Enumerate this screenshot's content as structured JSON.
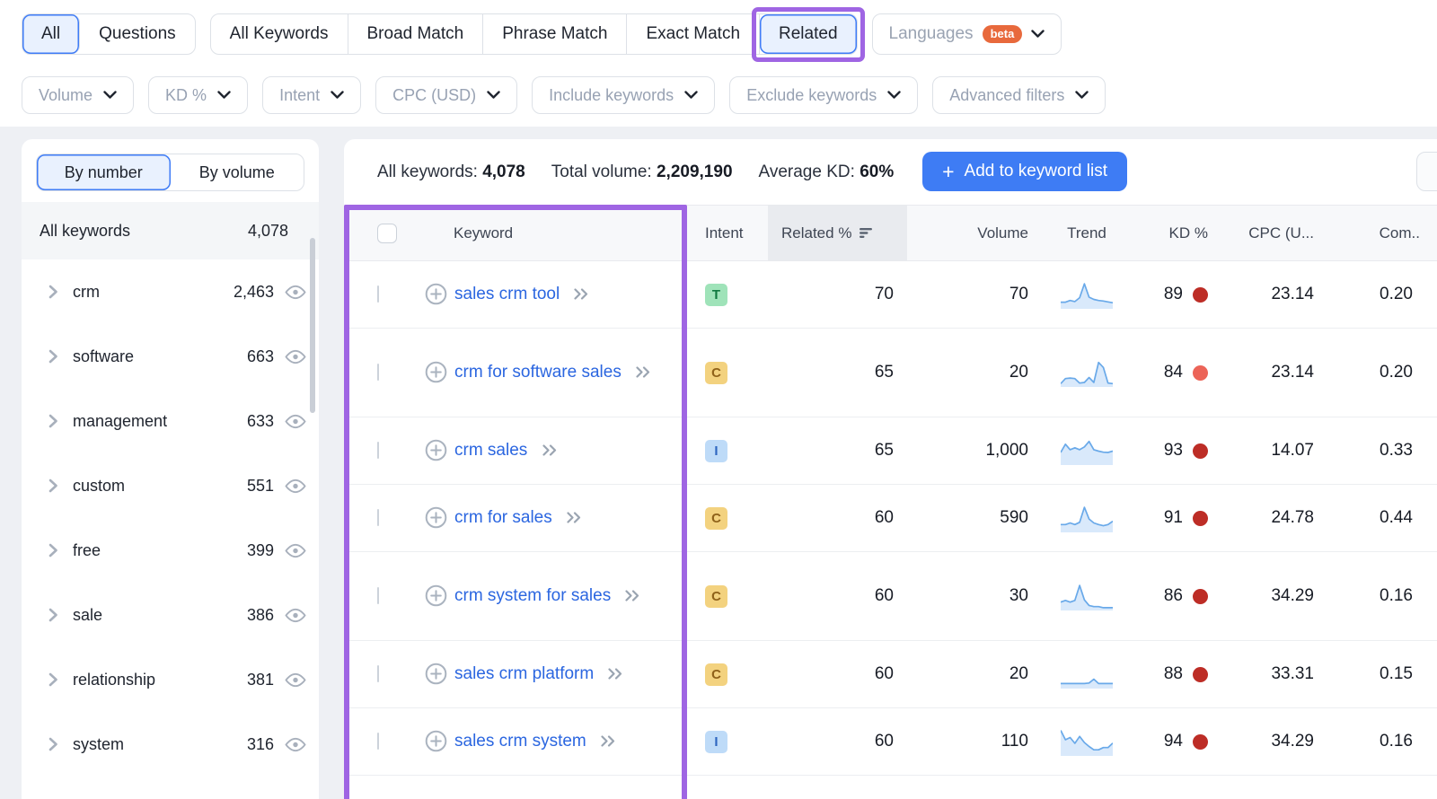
{
  "match_tabs": {
    "group1": [
      {
        "label": "All",
        "selected": true,
        "annotated": false
      },
      {
        "label": "Questions",
        "selected": false,
        "annotated": false
      }
    ],
    "group2": [
      {
        "label": "All Keywords",
        "selected": false,
        "annotated": false
      },
      {
        "label": "Broad Match",
        "selected": false,
        "annotated": false
      },
      {
        "label": "Phrase Match",
        "selected": false,
        "annotated": false
      },
      {
        "label": "Exact Match",
        "selected": false,
        "annotated": false
      },
      {
        "label": "Related",
        "selected": true,
        "annotated": true
      }
    ],
    "languages": {
      "label": "Languages",
      "badge": "beta"
    }
  },
  "filters": [
    {
      "label": "Volume"
    },
    {
      "label": "KD %"
    },
    {
      "label": "Intent"
    },
    {
      "label": "CPC (USD)"
    },
    {
      "label": "Include keywords"
    },
    {
      "label": "Exclude keywords"
    },
    {
      "label": "Advanced filters"
    }
  ],
  "sidebar": {
    "view_toggle": [
      {
        "label": "By number",
        "selected": true
      },
      {
        "label": "By volume",
        "selected": false
      }
    ],
    "all_keywords": {
      "label": "All keywords",
      "count": "4,078"
    },
    "groups": [
      {
        "label": "crm",
        "count": "2,463"
      },
      {
        "label": "software",
        "count": "663"
      },
      {
        "label": "management",
        "count": "633"
      },
      {
        "label": "custom",
        "count": "551"
      },
      {
        "label": "free",
        "count": "399"
      },
      {
        "label": "sale",
        "count": "386"
      },
      {
        "label": "relationship",
        "count": "381"
      },
      {
        "label": "system",
        "count": "316"
      }
    ]
  },
  "summary": {
    "stats": [
      {
        "label": "All keywords:",
        "value": "4,078"
      },
      {
        "label": "Total volume:",
        "value": "2,209,190"
      },
      {
        "label": "Average KD:",
        "value": "60%"
      }
    ],
    "add_button_label": "Add to keyword list"
  },
  "table": {
    "headers": {
      "keyword": "Keyword",
      "intent": "Intent",
      "related": "Related %",
      "volume": "Volume",
      "trend": "Trend",
      "kd": "KD %",
      "cpc": "CPC (U...",
      "com": "Com.."
    },
    "rows": [
      {
        "keyword": "sales crm tool",
        "intent": "T",
        "related": "70",
        "volume": "70",
        "kd": "89",
        "kd_level": "very_hard",
        "cpc": "23.14",
        "com": "0.20",
        "trend": [
          0.24,
          0.24,
          0.3,
          0.26,
          0.4,
          0.9,
          0.42,
          0.34,
          0.3,
          0.28,
          0.25,
          0.22
        ]
      },
      {
        "keyword": "crm for software sales",
        "intent": "C",
        "related": "65",
        "volume": "20",
        "kd": "84",
        "kd_level": "hard",
        "cpc": "23.14",
        "com": "0.20",
        "trend": [
          0.12,
          0.3,
          0.32,
          0.3,
          0.14,
          0.16,
          0.34,
          0.16,
          0.88,
          0.7,
          0.14,
          0.12
        ]
      },
      {
        "keyword": "crm sales",
        "intent": "I",
        "related": "65",
        "volume": "1,000",
        "kd": "93",
        "kd_level": "very_hard",
        "cpc": "14.07",
        "com": "0.33",
        "trend": [
          0.45,
          0.75,
          0.55,
          0.62,
          0.55,
          0.65,
          0.85,
          0.55,
          0.5,
          0.46,
          0.45,
          0.5
        ]
      },
      {
        "keyword": "crm for sales",
        "intent": "C",
        "related": "60",
        "volume": "590",
        "kd": "91",
        "kd_level": "very_hard",
        "cpc": "24.78",
        "com": "0.44",
        "trend": [
          0.28,
          0.28,
          0.34,
          0.28,
          0.36,
          0.9,
          0.48,
          0.34,
          0.28,
          0.24,
          0.28,
          0.4
        ]
      },
      {
        "keyword": "crm system for sales",
        "intent": "C",
        "related": "60",
        "volume": "30",
        "kd": "86",
        "kd_level": "very_hard",
        "cpc": "34.29",
        "com": "0.16",
        "trend": [
          0.3,
          0.36,
          0.3,
          0.36,
          0.9,
          0.38,
          0.18,
          0.14,
          0.14,
          0.1,
          0.1,
          0.1
        ]
      },
      {
        "keyword": "sales crm platform",
        "intent": "C",
        "related": "60",
        "volume": "20",
        "kd": "88",
        "kd_level": "very_hard",
        "cpc": "33.31",
        "com": "0.15",
        "trend": [
          0.18,
          0.18,
          0.18,
          0.18,
          0.18,
          0.18,
          0.2,
          0.34,
          0.18,
          0.18,
          0.18,
          0.18
        ]
      },
      {
        "keyword": "sales crm system",
        "intent": "I",
        "related": "60",
        "volume": "110",
        "kd": "94",
        "kd_level": "very_hard",
        "cpc": "34.29",
        "com": "0.16",
        "trend": [
          0.92,
          0.58,
          0.66,
          0.45,
          0.7,
          0.48,
          0.34,
          0.22,
          0.22,
          0.3,
          0.3,
          0.46
        ]
      }
    ]
  },
  "colors": {
    "annotation_purple": "#9f65e3",
    "accent_blue": "#3e7cf4",
    "link_blue": "#2b66e0",
    "beta_orange": "#e8693c",
    "spark_fill": "#d9e9fb",
    "spark_line": "#69a9e9",
    "intent": {
      "T": {
        "bg": "#9fe3b9",
        "fg": "#0f7a3f"
      },
      "C": {
        "bg": "#f3d27f",
        "fg": "#90621a"
      },
      "I": {
        "bg": "#bedbf8",
        "fg": "#2e66c0"
      }
    },
    "kd": {
      "very_hard": "#bd2d26",
      "hard": "#ec6458"
    }
  }
}
